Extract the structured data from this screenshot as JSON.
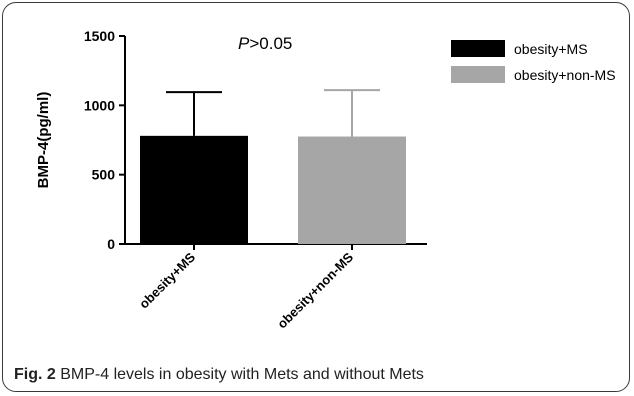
{
  "chart_data": {
    "type": "bar",
    "categories": [
      "obesity+MS",
      "obesity+non-MS"
    ],
    "values": [
      780,
      775
    ],
    "error_upper": [
      1095,
      1110
    ],
    "colors": [
      "#000000",
      "#a6a6a6"
    ],
    "annotation_prefix": "P",
    "annotation_suffix": ">0.05",
    "ylabel": "BMP-4(pg/ml)",
    "ylim": [
      0,
      1500
    ],
    "yticks": [
      0,
      500,
      1000,
      1500
    ],
    "legend": [
      {
        "label": "obesity+MS",
        "color": "#000000"
      },
      {
        "label": "obesity+non-MS",
        "color": "#a6a6a6"
      }
    ],
    "legend_position": "top-right",
    "grid": false
  },
  "caption": {
    "fig_label": "Fig. 2",
    "text": " BMP-4 levels in obesity with Mets and without Mets"
  }
}
